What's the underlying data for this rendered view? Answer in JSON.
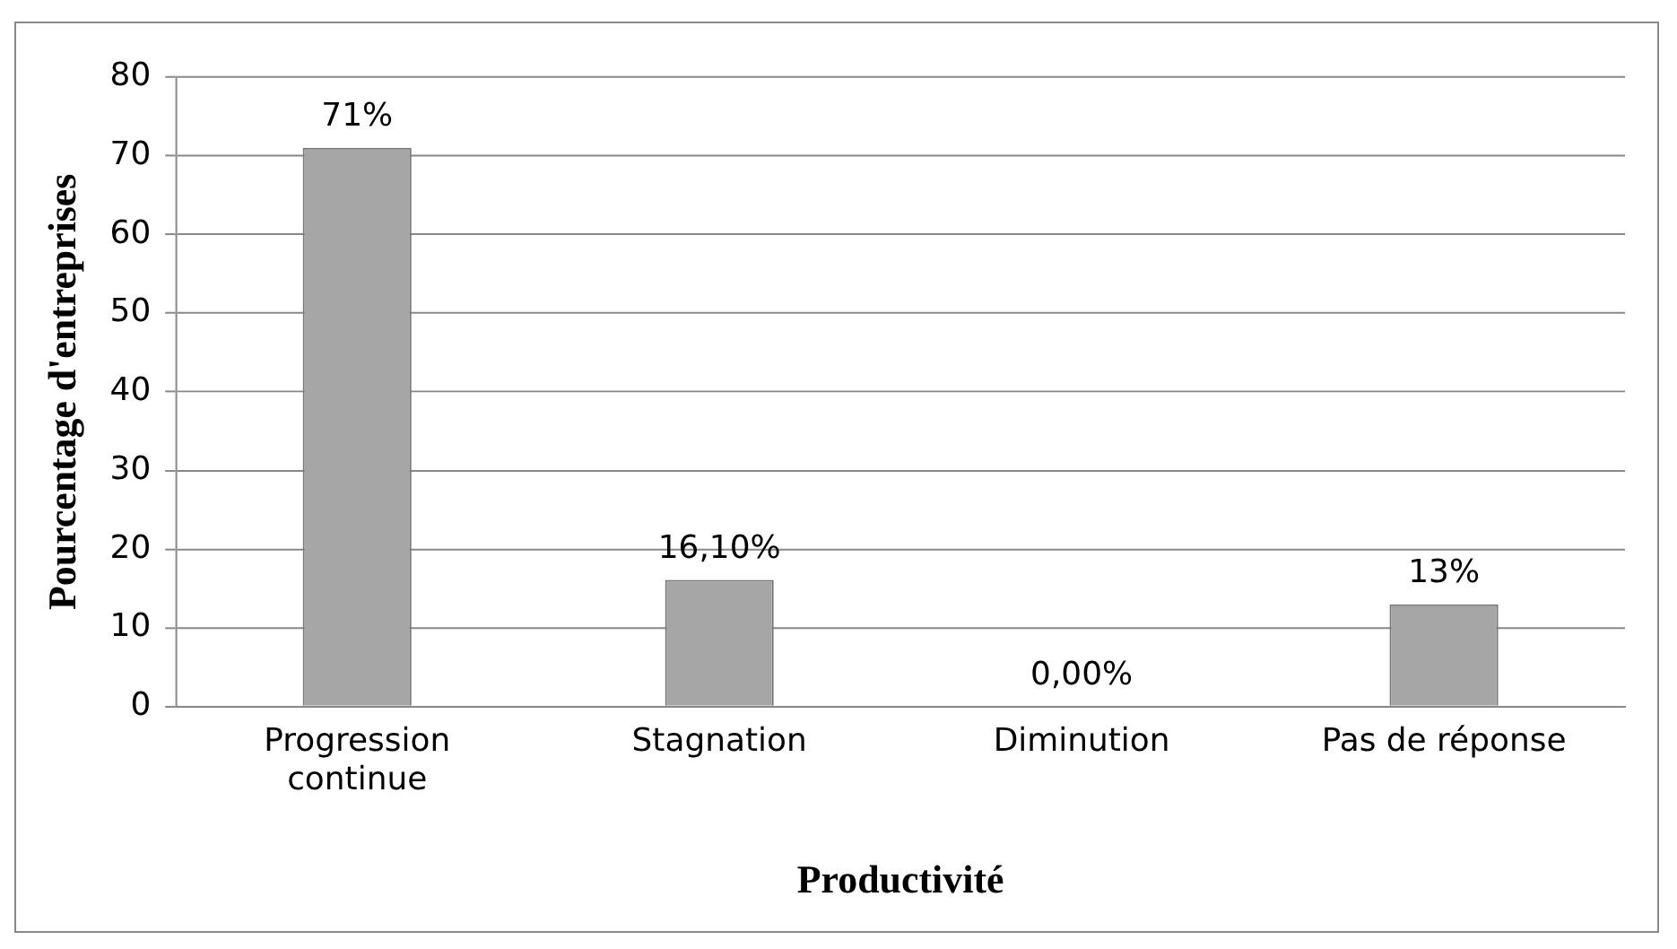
{
  "chart_data": {
    "type": "bar",
    "xlabel": "Productivité",
    "ylabel": "Pourcentage d'entreprises",
    "categories": [
      "Progression continue",
      "Stagnation",
      "Diminution",
      "Pas de réponse"
    ],
    "values": [
      71,
      16.1,
      0,
      13
    ],
    "value_labels": [
      "71%",
      "16,10%",
      "0,00%",
      "13%"
    ],
    "color": "#a6a6a6",
    "ylim": [
      0,
      80
    ],
    "yticks": [
      0,
      10,
      20,
      30,
      40,
      50,
      60,
      70,
      80
    ],
    "grid": "y",
    "legend": false
  }
}
